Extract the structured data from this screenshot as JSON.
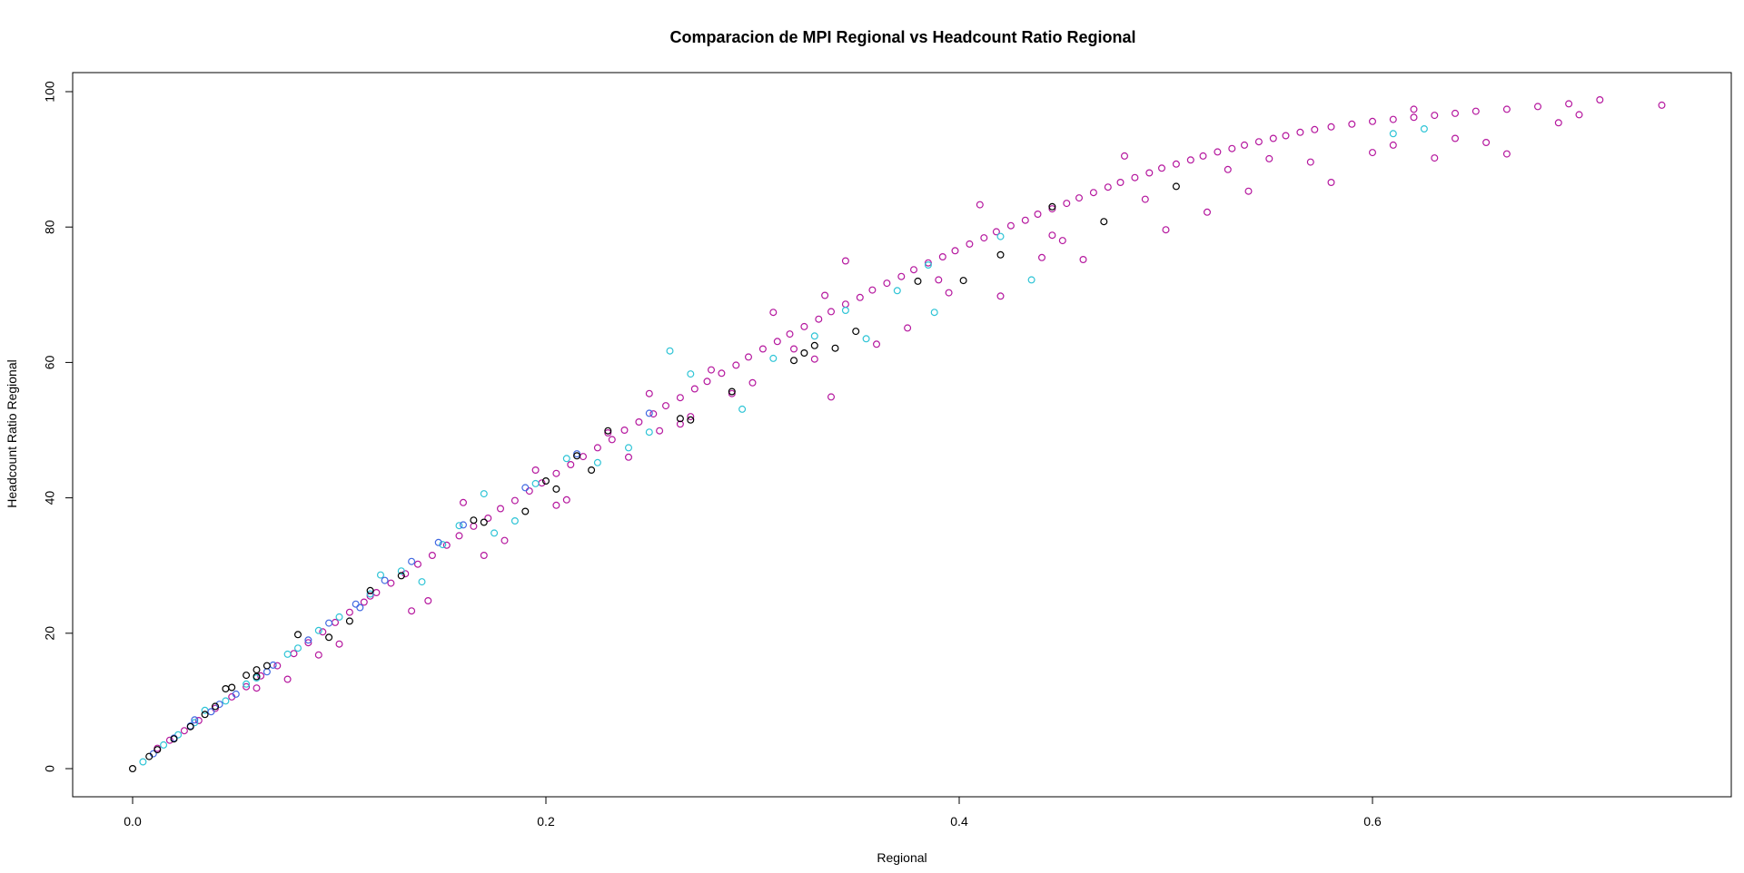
{
  "chart_data": {
    "type": "scatter",
    "title": "Comparacion de MPI Regional vs Headcount Ratio Regional",
    "xlabel": "Regional",
    "ylabel": "Headcount Ratio Regional",
    "xlim": [
      -0.03,
      0.77
    ],
    "ylim": [
      -4,
      103
    ],
    "x_ticks": [
      0.0,
      0.2,
      0.4,
      0.6
    ],
    "x_tick_labels": [
      "0.0",
      "0.2",
      "0.4",
      "0.6"
    ],
    "y_ticks": [
      0,
      20,
      40,
      60,
      80,
      100
    ],
    "y_tick_labels": [
      "0",
      "20",
      "40",
      "60",
      "80",
      "100"
    ],
    "grid": false,
    "legend": "none",
    "marker": "open-circle",
    "colors": {
      "magenta": "#b5179e",
      "cyan": "#2ec4d6",
      "blue": "#4169e1",
      "black": "#000000"
    },
    "series": [
      {
        "color": "magenta",
        "points": [
          [
            0.012,
            3.0
          ],
          [
            0.018,
            4.2
          ],
          [
            0.025,
            5.6
          ],
          [
            0.032,
            7.1
          ],
          [
            0.04,
            8.9
          ],
          [
            0.048,
            10.6
          ],
          [
            0.055,
            12.1
          ],
          [
            0.062,
            13.7
          ],
          [
            0.07,
            15.2
          ],
          [
            0.078,
            17.0
          ],
          [
            0.085,
            18.6
          ],
          [
            0.092,
            20.2
          ],
          [
            0.098,
            21.6
          ],
          [
            0.105,
            23.1
          ],
          [
            0.112,
            24.6
          ],
          [
            0.118,
            26.0
          ],
          [
            0.125,
            27.4
          ],
          [
            0.132,
            28.8
          ],
          [
            0.138,
            30.2
          ],
          [
            0.145,
            31.5
          ],
          [
            0.152,
            33.0
          ],
          [
            0.158,
            34.4
          ],
          [
            0.165,
            35.8
          ],
          [
            0.172,
            37.0
          ],
          [
            0.178,
            38.4
          ],
          [
            0.185,
            39.6
          ],
          [
            0.192,
            41.0
          ],
          [
            0.198,
            42.2
          ],
          [
            0.205,
            43.6
          ],
          [
            0.212,
            44.9
          ],
          [
            0.218,
            46.1
          ],
          [
            0.225,
            47.4
          ],
          [
            0.232,
            48.6
          ],
          [
            0.238,
            50.0
          ],
          [
            0.245,
            51.2
          ],
          [
            0.252,
            52.4
          ],
          [
            0.258,
            53.6
          ],
          [
            0.265,
            54.8
          ],
          [
            0.272,
            56.1
          ],
          [
            0.278,
            57.2
          ],
          [
            0.285,
            58.4
          ],
          [
            0.292,
            59.6
          ],
          [
            0.298,
            60.8
          ],
          [
            0.305,
            62.0
          ],
          [
            0.312,
            63.1
          ],
          [
            0.318,
            64.2
          ],
          [
            0.325,
            65.3
          ],
          [
            0.332,
            66.4
          ],
          [
            0.338,
            67.5
          ],
          [
            0.345,
            68.6
          ],
          [
            0.352,
            69.6
          ],
          [
            0.358,
            70.7
          ],
          [
            0.365,
            71.7
          ],
          [
            0.372,
            72.7
          ],
          [
            0.378,
            73.7
          ],
          [
            0.385,
            74.7
          ],
          [
            0.392,
            75.6
          ],
          [
            0.398,
            76.5
          ],
          [
            0.405,
            77.5
          ],
          [
            0.412,
            78.4
          ],
          [
            0.418,
            79.3
          ],
          [
            0.425,
            80.2
          ],
          [
            0.432,
            81.0
          ],
          [
            0.438,
            81.9
          ],
          [
            0.445,
            82.7
          ],
          [
            0.452,
            83.5
          ],
          [
            0.458,
            84.3
          ],
          [
            0.465,
            85.1
          ],
          [
            0.472,
            85.9
          ],
          [
            0.478,
            86.6
          ],
          [
            0.485,
            87.3
          ],
          [
            0.492,
            88.0
          ],
          [
            0.498,
            88.7
          ],
          [
            0.505,
            89.3
          ],
          [
            0.512,
            89.9
          ],
          [
            0.518,
            90.5
          ],
          [
            0.525,
            91.1
          ],
          [
            0.532,
            91.6
          ],
          [
            0.538,
            92.1
          ],
          [
            0.545,
            92.6
          ],
          [
            0.552,
            93.1
          ],
          [
            0.558,
            93.5
          ],
          [
            0.565,
            94.0
          ],
          [
            0.572,
            94.4
          ],
          [
            0.58,
            94.8
          ],
          [
            0.59,
            95.2
          ],
          [
            0.6,
            95.6
          ],
          [
            0.61,
            95.9
          ],
          [
            0.62,
            96.2
          ],
          [
            0.63,
            96.5
          ],
          [
            0.64,
            96.8
          ],
          [
            0.65,
            97.1
          ],
          [
            0.665,
            97.4
          ],
          [
            0.68,
            97.8
          ],
          [
            0.695,
            98.2
          ],
          [
            0.71,
            98.8
          ],
          [
            0.74,
            98.0
          ],
          [
            0.06,
            11.9
          ],
          [
            0.09,
            16.8
          ],
          [
            0.115,
            25.5
          ],
          [
            0.143,
            24.8
          ],
          [
            0.16,
            39.3
          ],
          [
            0.195,
            44.1
          ],
          [
            0.21,
            39.7
          ],
          [
            0.23,
            49.6
          ],
          [
            0.255,
            49.9
          ],
          [
            0.27,
            52.0
          ],
          [
            0.29,
            55.4
          ],
          [
            0.31,
            67.4
          ],
          [
            0.335,
            69.9
          ],
          [
            0.338,
            54.9
          ],
          [
            0.36,
            62.7
          ],
          [
            0.375,
            65.1
          ],
          [
            0.395,
            70.3
          ],
          [
            0.42,
            69.8
          ],
          [
            0.44,
            75.5
          ],
          [
            0.46,
            75.2
          ],
          [
            0.48,
            90.5
          ],
          [
            0.5,
            79.6
          ],
          [
            0.52,
            82.2
          ],
          [
            0.54,
            85.3
          ],
          [
            0.57,
            89.6
          ],
          [
            0.58,
            86.6
          ],
          [
            0.6,
            91.0
          ],
          [
            0.63,
            90.2
          ],
          [
            0.655,
            92.5
          ],
          [
            0.665,
            90.8
          ],
          [
            0.69,
            95.4
          ],
          [
            0.7,
            96.6
          ],
          [
            0.33,
            60.5
          ],
          [
            0.28,
            58.9
          ],
          [
            0.24,
            46.0
          ],
          [
            0.18,
            33.7
          ],
          [
            0.1,
            18.4
          ],
          [
            0.075,
            13.2
          ],
          [
            0.135,
            23.3
          ],
          [
            0.17,
            31.5
          ],
          [
            0.205,
            38.9
          ],
          [
            0.25,
            55.4
          ],
          [
            0.3,
            57.0
          ],
          [
            0.345,
            75.0
          ],
          [
            0.41,
            83.3
          ],
          [
            0.45,
            78.0
          ],
          [
            0.49,
            84.1
          ],
          [
            0.53,
            88.5
          ],
          [
            0.55,
            90.1
          ],
          [
            0.61,
            92.1
          ],
          [
            0.62,
            97.4
          ],
          [
            0.64,
            93.1
          ],
          [
            0.445,
            78.8
          ],
          [
            0.39,
            72.2
          ],
          [
            0.32,
            62.0
          ],
          [
            0.265,
            50.9
          ]
        ]
      },
      {
        "color": "cyan",
        "points": [
          [
            0.005,
            1.0
          ],
          [
            0.015,
            3.5
          ],
          [
            0.022,
            5.0
          ],
          [
            0.03,
            6.8
          ],
          [
            0.045,
            10.0
          ],
          [
            0.06,
            13.4
          ],
          [
            0.075,
            16.9
          ],
          [
            0.09,
            20.4
          ],
          [
            0.1,
            22.4
          ],
          [
            0.115,
            25.8
          ],
          [
            0.13,
            29.2
          ],
          [
            0.14,
            27.6
          ],
          [
            0.15,
            33.1
          ],
          [
            0.158,
            35.9
          ],
          [
            0.175,
            34.8
          ],
          [
            0.185,
            36.6
          ],
          [
            0.195,
            42.1
          ],
          [
            0.21,
            45.8
          ],
          [
            0.225,
            45.2
          ],
          [
            0.24,
            47.4
          ],
          [
            0.25,
            49.7
          ],
          [
            0.26,
            61.7
          ],
          [
            0.27,
            58.3
          ],
          [
            0.295,
            53.1
          ],
          [
            0.31,
            60.6
          ],
          [
            0.33,
            63.9
          ],
          [
            0.345,
            67.7
          ],
          [
            0.355,
            63.5
          ],
          [
            0.37,
            70.6
          ],
          [
            0.385,
            74.4
          ],
          [
            0.388,
            67.4
          ],
          [
            0.42,
            78.6
          ],
          [
            0.435,
            72.2
          ],
          [
            0.61,
            93.8
          ],
          [
            0.625,
            94.5
          ],
          [
            0.17,
            40.6
          ],
          [
            0.12,
            28.6
          ],
          [
            0.035,
            8.6
          ],
          [
            0.055,
            12.5
          ],
          [
            0.08,
            17.8
          ]
        ]
      },
      {
        "color": "blue",
        "points": [
          [
            0.01,
            2.2
          ],
          [
            0.02,
            4.5
          ],
          [
            0.028,
            6.3
          ],
          [
            0.038,
            8.4
          ],
          [
            0.05,
            11.0
          ],
          [
            0.065,
            14.3
          ],
          [
            0.085,
            19.0
          ],
          [
            0.095,
            21.5
          ],
          [
            0.108,
            24.3
          ],
          [
            0.122,
            27.8
          ],
          [
            0.135,
            30.6
          ],
          [
            0.148,
            33.4
          ],
          [
            0.16,
            36.0
          ],
          [
            0.19,
            41.5
          ],
          [
            0.215,
            46.5
          ],
          [
            0.25,
            52.5
          ],
          [
            0.03,
            7.2
          ],
          [
            0.042,
            9.5
          ],
          [
            0.068,
            15.3
          ],
          [
            0.11,
            23.8
          ]
        ]
      },
      {
        "color": "black",
        "points": [
          [
            0.0,
            0.0
          ],
          [
            0.008,
            1.8
          ],
          [
            0.012,
            2.8
          ],
          [
            0.02,
            4.4
          ],
          [
            0.028,
            6.2
          ],
          [
            0.035,
            8.0
          ],
          [
            0.04,
            9.2
          ],
          [
            0.048,
            12.0
          ],
          [
            0.055,
            13.8
          ],
          [
            0.06,
            14.6
          ],
          [
            0.065,
            15.2
          ],
          [
            0.08,
            19.8
          ],
          [
            0.095,
            19.4
          ],
          [
            0.105,
            21.8
          ],
          [
            0.13,
            28.5
          ],
          [
            0.165,
            36.7
          ],
          [
            0.19,
            38.0
          ],
          [
            0.2,
            42.5
          ],
          [
            0.205,
            41.3
          ],
          [
            0.215,
            46.2
          ],
          [
            0.222,
            44.1
          ],
          [
            0.27,
            51.5
          ],
          [
            0.29,
            55.7
          ],
          [
            0.32,
            60.3
          ],
          [
            0.325,
            61.4
          ],
          [
            0.34,
            62.1
          ],
          [
            0.35,
            64.6
          ],
          [
            0.38,
            72.0
          ],
          [
            0.402,
            72.1
          ],
          [
            0.42,
            75.9
          ],
          [
            0.445,
            83.0
          ],
          [
            0.47,
            80.8
          ],
          [
            0.505,
            86.0
          ],
          [
            0.06,
            13.6
          ],
          [
            0.045,
            11.8
          ],
          [
            0.115,
            26.3
          ],
          [
            0.17,
            36.4
          ],
          [
            0.23,
            49.9
          ],
          [
            0.265,
            51.7
          ],
          [
            0.33,
            62.5
          ]
        ]
      }
    ]
  }
}
